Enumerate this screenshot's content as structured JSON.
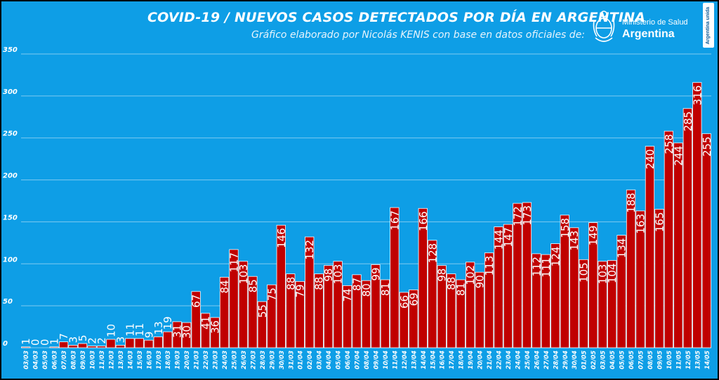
{
  "title": "COVID-19  /  NUEVOS CASOS DETECTADOS POR DÍA EN ARGENTINA",
  "subtitle": "Gráfico elaborado por Nicolás KENIS con base en datos oficiales de:",
  "logo": {
    "ministry": "Ministerio de Salud",
    "country": "Argentina",
    "badge": "Argentina unida"
  },
  "colors": {
    "background": "#0e9ee6",
    "bar": "#c00000",
    "bar_border": "#ffffff",
    "text": "#ffffff",
    "gridline": "#7fcaf0"
  },
  "chart_data": {
    "type": "bar",
    "title": "COVID-19  /  NUEVOS CASOS DETECTADOS POR DÍA EN ARGENTINA",
    "xlabel": "",
    "ylabel": "",
    "ylim": [
      0,
      350
    ],
    "yticks": [
      0,
      50,
      100,
      150,
      200,
      250,
      300,
      350
    ],
    "grid": true,
    "legend": "none",
    "categories": [
      "03/03",
      "04/03",
      "05/03",
      "06/03",
      "07/03",
      "08/03",
      "09/03",
      "10/03",
      "11/03",
      "12/03",
      "13/03",
      "14/03",
      "15/03",
      "16/03",
      "17/03",
      "18/03",
      "19/03",
      "20/03",
      "21/03",
      "22/03",
      "23/03",
      "24/03",
      "25/03",
      "26/03",
      "27/03",
      "28/03",
      "29/03",
      "30/03",
      "31/03",
      "01/04",
      "02/04",
      "03/04",
      "04/04",
      "05/04",
      "06/04",
      "07/04",
      "08/04",
      "09/04",
      "10/04",
      "11/04",
      "12/04",
      "13/04",
      "14/04",
      "15/04",
      "16/04",
      "17/04",
      "18/04",
      "19/04",
      "20/04",
      "21/04",
      "22/04",
      "23/04",
      "24/04",
      "25/04",
      "26/04",
      "27/04",
      "28/04",
      "29/04",
      "30/04",
      "01/05",
      "02/05",
      "03/05",
      "04/05",
      "05/05",
      "06/05",
      "07/05",
      "08/05",
      "09/05",
      "10/05",
      "11/05",
      "12/05",
      "13/05",
      "14/05"
    ],
    "values": [
      1,
      0,
      0,
      1,
      7,
      3,
      5,
      2,
      2,
      10,
      3,
      11,
      11,
      9,
      13,
      19,
      31,
      30,
      67,
      41,
      36,
      84,
      117,
      103,
      85,
      55,
      75,
      146,
      88,
      79,
      132,
      88,
      98,
      103,
      74,
      87,
      80,
      99,
      81,
      167,
      66,
      69,
      166,
      128,
      98,
      88,
      81,
      102,
      90,
      113,
      144,
      147,
      172,
      173,
      112,
      111,
      124,
      158,
      143,
      105,
      149,
      103,
      104,
      134,
      188,
      163,
      240,
      165,
      258,
      244,
      285,
      316,
      255
    ]
  }
}
